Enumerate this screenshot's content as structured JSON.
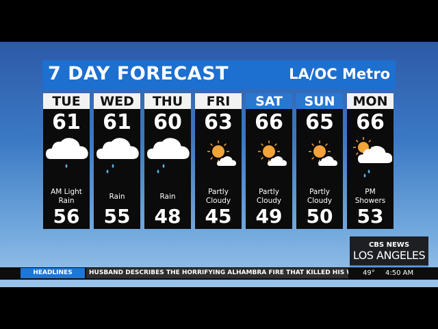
{
  "header": {
    "title": "7 DAY FORECAST",
    "region": "LA/OC Metro"
  },
  "days": [
    {
      "day": "TUE",
      "hi": "61",
      "lo": "56",
      "cond": "AM Light Rain",
      "icon": "rain-cloud-icon",
      "weekend": false
    },
    {
      "day": "WED",
      "hi": "61",
      "lo": "55",
      "cond": "Rain",
      "icon": "rain-cloud-icon",
      "weekend": false
    },
    {
      "day": "THU",
      "hi": "60",
      "lo": "48",
      "cond": "Rain",
      "icon": "rain-cloud-icon",
      "weekend": false
    },
    {
      "day": "FRI",
      "hi": "63",
      "lo": "45",
      "cond": "Partly Cloudy",
      "icon": "partly-cloudy-icon",
      "weekend": false
    },
    {
      "day": "SAT",
      "hi": "66",
      "lo": "49",
      "cond": "Partly Cloudy",
      "icon": "partly-cloudy-icon",
      "weekend": true
    },
    {
      "day": "SUN",
      "hi": "65",
      "lo": "50",
      "cond": "Partly Cloudy",
      "icon": "partly-cloudy-icon",
      "weekend": true
    },
    {
      "day": "MON",
      "hi": "66",
      "lo": "53",
      "cond": "PM Showers",
      "icon": "sun-showers-icon",
      "weekend": false
    }
  ],
  "logo": {
    "network": "CBS NEWS",
    "city": "LOS ANGELES"
  },
  "ticker": {
    "label": "HEADLINES",
    "headline": "HUSBAND DESCRIBES THE HORRIFYING ALHAMBRA FIRE THAT KILLED HIS WIFE, SERIOU",
    "temp": "49°",
    "time": "4:50 AM"
  },
  "colors": {
    "header": "#1d6fd0",
    "weekend": "#2a77d0",
    "sun": "#f2a33a",
    "drop": "#5ab0e8"
  }
}
